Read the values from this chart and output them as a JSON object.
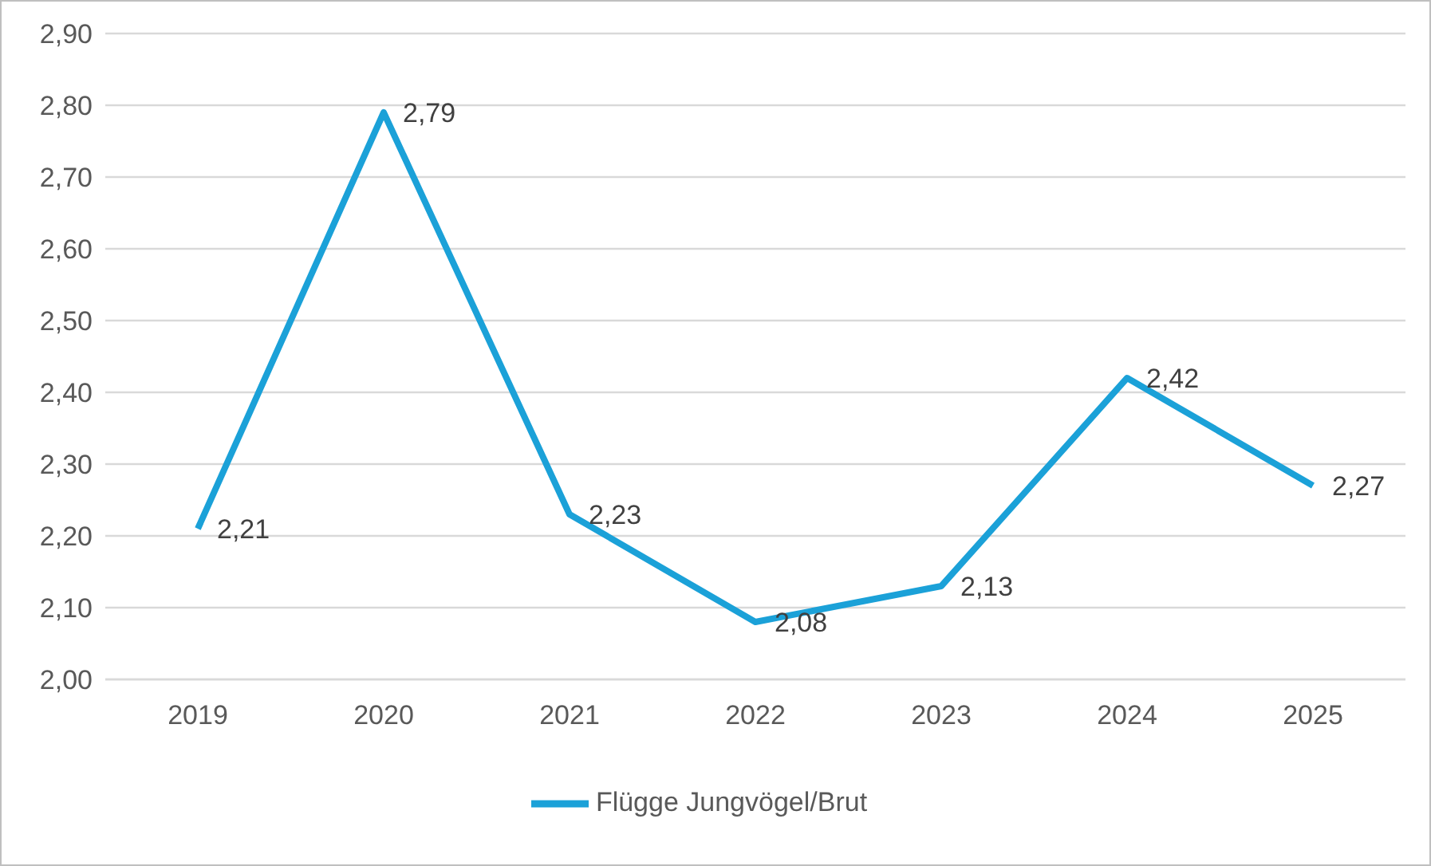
{
  "chart_data": {
    "type": "line",
    "categories": [
      "2019",
      "2020",
      "2021",
      "2022",
      "2023",
      "2024",
      "2025"
    ],
    "series": [
      {
        "name": "Flügge Jungvögel/Brut",
        "color": "#1ba1d8",
        "values": [
          2.21,
          2.79,
          2.23,
          2.08,
          2.13,
          2.42,
          2.27
        ],
        "value_labels": [
          "2,21",
          "2,79",
          "2,23",
          "2,08",
          "2,13",
          "2,42",
          "2,27"
        ]
      }
    ],
    "ylim": [
      2.0,
      2.9
    ],
    "yticks": [
      {
        "value": 2.0,
        "label": "2,00"
      },
      {
        "value": 2.1,
        "label": "2,10"
      },
      {
        "value": 2.2,
        "label": "2,20"
      },
      {
        "value": 2.3,
        "label": "2,30"
      },
      {
        "value": 2.4,
        "label": "2,40"
      },
      {
        "value": 2.5,
        "label": "2,50"
      },
      {
        "value": 2.6,
        "label": "2,60"
      },
      {
        "value": 2.7,
        "label": "2,70"
      },
      {
        "value": 2.8,
        "label": "2,80"
      },
      {
        "value": 2.9,
        "label": "2,90"
      }
    ],
    "grid": "y",
    "legend": "bottom",
    "marker": "none",
    "line_style": "solid"
  }
}
